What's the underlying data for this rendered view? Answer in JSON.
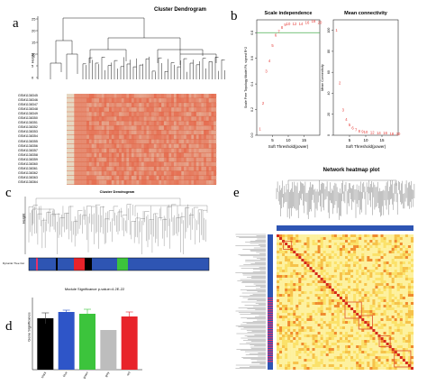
{
  "panels": {
    "a": {
      "letter": "a",
      "title": "Cluster Dendrogram",
      "ylabel": "Height",
      "samples": [
        "GSM1138345",
        "GSM1138346",
        "GSM1138347",
        "GSM1138348",
        "GSM1138349",
        "GSM1138350",
        "GSM1138351",
        "GSM1138352",
        "GSM1138353",
        "GSM1138354",
        "GSM1138355",
        "GSM1138356",
        "GSM1138357",
        "GSM1138358",
        "GSM1138359",
        "GSM1138360",
        "GSM1138361",
        "GSM1138362",
        "GSM1138363",
        "GSM1138364"
      ],
      "yticks": [
        "0",
        "5",
        "10",
        "15",
        "20",
        "25"
      ]
    },
    "b": {
      "letter": "b"
    },
    "c": {
      "letter": "c",
      "title": "Cluster Dendrogram",
      "ylabel": "Height",
      "rowlabel": "Dynamic Tree Cut",
      "modules": [
        "#2e55b3",
        "#e8316a",
        "#2e55b3",
        "#000000",
        "#2e55b3",
        "#e8232a",
        "#000000",
        "#2e55b3",
        "#3cc43c",
        "#2e55b3"
      ]
    },
    "d": {
      "letter": "d",
      "title": "Module Significance p-value=4.2E-22",
      "ylabel": "Gene Significance"
    },
    "e": {
      "letter": "e",
      "title": "Network heatmap plot"
    }
  },
  "chart_data": [
    {
      "type": "scatter",
      "title": "Scale independence",
      "xlabel": "Soft Threshold(power)",
      "ylabel": "Scale Free Topology Model Fit, signed R^2",
      "xlim": [
        0,
        20
      ],
      "ylim": [
        0,
        0.9
      ],
      "xticks": [
        "5",
        "10",
        "15"
      ],
      "yticks": [
        "0.0",
        "0.2",
        "0.4",
        "0.6",
        "0.8"
      ],
      "threshold": 0.8,
      "x": [
        1,
        2,
        3,
        4,
        5,
        6,
        7,
        8,
        9,
        10,
        12,
        14,
        16,
        18,
        20
      ],
      "y": [
        0.05,
        0.25,
        0.5,
        0.58,
        0.7,
        0.78,
        0.81,
        0.84,
        0.86,
        0.87,
        0.87,
        0.87,
        0.88,
        0.89,
        0.88
      ],
      "labels": [
        "1",
        "2",
        "3",
        "4",
        "5",
        "6",
        "7",
        "8",
        "9",
        "10",
        "12",
        "14",
        "16",
        "18",
        "20"
      ]
    },
    {
      "type": "scatter",
      "title": "Mean connectivity",
      "xlabel": "Soft Threshold(power)",
      "ylabel": "Mean Connectivity",
      "xlim": [
        0,
        20
      ],
      "ylim": [
        0,
        110
      ],
      "xticks": [
        "5",
        "10",
        "15"
      ],
      "yticks": [
        "0",
        "20",
        "40",
        "60",
        "80",
        "100"
      ],
      "x": [
        1,
        2,
        3,
        4,
        5,
        6,
        7,
        8,
        9,
        10,
        12,
        14,
        16,
        18,
        20
      ],
      "y": [
        100,
        50,
        24,
        15,
        10,
        7,
        5,
        4,
        3.5,
        3,
        2.5,
        2,
        2,
        1.5,
        1.5
      ],
      "labels": [
        "1",
        "2",
        "3",
        "4",
        "5",
        "6",
        "7",
        "8",
        "9",
        "10",
        "12",
        "14",
        "16",
        "18",
        "20"
      ]
    },
    {
      "type": "bar",
      "title": "Module Significance p-value=4.2E-22",
      "ylabel": "Gene Significance",
      "categories": [
        "black",
        "blue",
        "green",
        "grey",
        "red"
      ],
      "values": [
        0.57,
        0.64,
        0.62,
        0.44,
        0.59
      ],
      "errors": [
        0.06,
        0.02,
        0.05,
        0.0,
        0.05
      ],
      "colors": [
        "#000000",
        "#2e55c8",
        "#3cc43c",
        "#bdbdbd",
        "#e8232a"
      ],
      "ylim": [
        0,
        0.8
      ]
    }
  ]
}
